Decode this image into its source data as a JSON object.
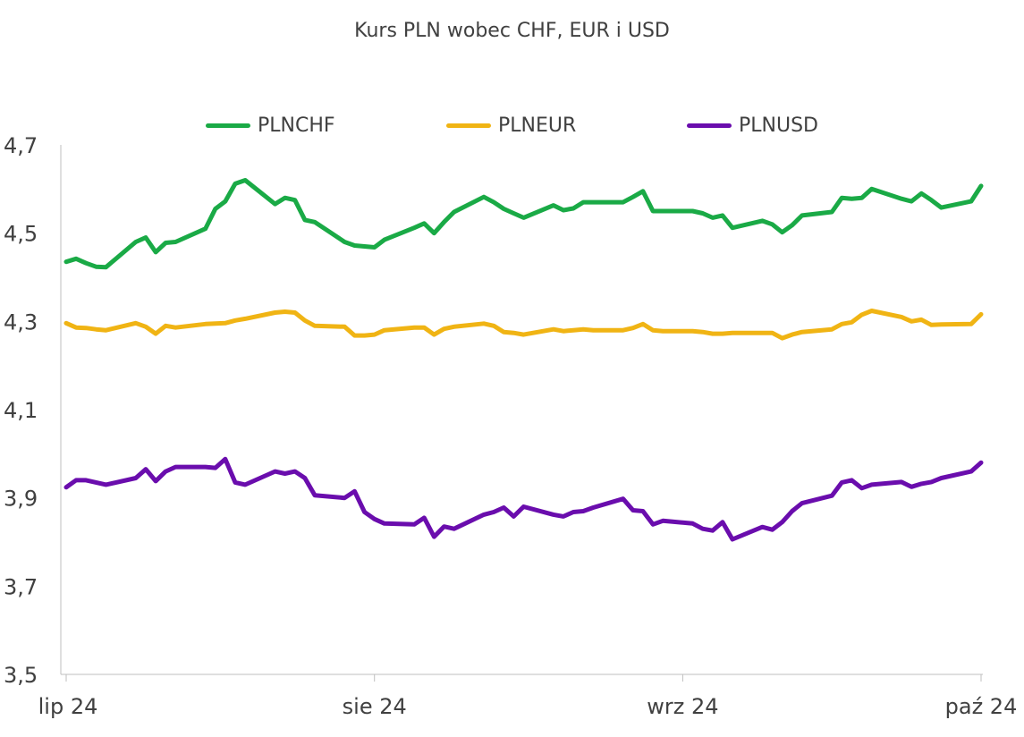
{
  "chart_data": {
    "type": "line",
    "title": "Kurs PLN wobec CHF, EUR i USD",
    "xlabel": "",
    "ylabel": "",
    "ylim": [
      3.5,
      4.7
    ],
    "y_ticks": [
      "3,5",
      "3,7",
      "3,9",
      "4,1",
      "4,3",
      "4,5",
      "4,7"
    ],
    "y_tick_values": [
      3.5,
      3.7,
      3.9,
      4.1,
      4.3,
      4.5,
      4.7
    ],
    "x_ticks": [
      "lip 24",
      "sie 24",
      "wrz 24",
      "paź 24"
    ],
    "x_tick_dates": [
      "2024-07-01",
      "2024-08-01",
      "2024-09-01",
      "2024-10-01"
    ],
    "legend_position": "top",
    "grid": false,
    "x": [
      "2024-07-01",
      "2024-07-02",
      "2024-07-03",
      "2024-07-04",
      "2024-07-05",
      "2024-07-08",
      "2024-07-09",
      "2024-07-10",
      "2024-07-11",
      "2024-07-12",
      "2024-07-15",
      "2024-07-16",
      "2024-07-17",
      "2024-07-18",
      "2024-07-19",
      "2024-07-22",
      "2024-07-23",
      "2024-07-24",
      "2024-07-25",
      "2024-07-26",
      "2024-07-29",
      "2024-07-30",
      "2024-07-31",
      "2024-08-01",
      "2024-08-02",
      "2024-08-05",
      "2024-08-06",
      "2024-08-07",
      "2024-08-08",
      "2024-08-09",
      "2024-08-12",
      "2024-08-13",
      "2024-08-14",
      "2024-08-15",
      "2024-08-16",
      "2024-08-19",
      "2024-08-20",
      "2024-08-21",
      "2024-08-22",
      "2024-08-23",
      "2024-08-26",
      "2024-08-27",
      "2024-08-28",
      "2024-08-29",
      "2024-08-30",
      "2024-09-02",
      "2024-09-03",
      "2024-09-04",
      "2024-09-05",
      "2024-09-06",
      "2024-09-09",
      "2024-09-10",
      "2024-09-11",
      "2024-09-12",
      "2024-09-13",
      "2024-09-16",
      "2024-09-17",
      "2024-09-18",
      "2024-09-19",
      "2024-09-20",
      "2024-09-23",
      "2024-09-24",
      "2024-09-25",
      "2024-09-26",
      "2024-09-27",
      "2024-09-30",
      "2024-10-01"
    ],
    "series": [
      {
        "name": "PLNCHF",
        "color": "#1aaa46",
        "values": [
          4.435,
          4.442,
          4.432,
          4.424,
          4.423,
          4.48,
          4.49,
          4.457,
          4.478,
          4.48,
          4.51,
          4.555,
          4.572,
          4.612,
          4.62,
          4.566,
          4.58,
          4.575,
          4.53,
          4.525,
          4.48,
          4.472,
          4.47,
          4.468,
          4.485,
          4.512,
          4.522,
          4.5,
          4.525,
          4.548,
          4.582,
          4.57,
          4.555,
          4.545,
          4.535,
          4.563,
          4.552,
          4.556,
          4.57,
          4.57,
          4.57,
          4.582,
          4.595,
          4.55,
          4.55,
          4.55,
          4.545,
          4.535,
          4.54,
          4.512,
          4.528,
          4.52,
          4.502,
          4.518,
          4.54,
          4.548,
          4.58,
          4.578,
          4.58,
          4.6,
          4.578,
          4.572,
          4.59,
          4.575,
          4.558,
          4.572,
          4.607
        ]
      },
      {
        "name": "PLNEUR",
        "color": "#f0b414",
        "values": [
          4.296,
          4.286,
          4.285,
          4.282,
          4.28,
          4.296,
          4.288,
          4.272,
          4.29,
          4.286,
          4.294,
          4.295,
          4.296,
          4.302,
          4.306,
          4.32,
          4.322,
          4.32,
          4.302,
          4.29,
          4.288,
          4.268,
          4.268,
          4.27,
          4.28,
          4.286,
          4.286,
          4.27,
          4.283,
          4.288,
          4.295,
          4.29,
          4.276,
          4.274,
          4.27,
          4.282,
          4.278,
          4.28,
          4.282,
          4.28,
          4.28,
          4.285,
          4.294,
          4.28,
          4.278,
          4.278,
          4.276,
          4.272,
          4.272,
          4.274,
          4.274,
          4.274,
          4.262,
          4.27,
          4.276,
          4.282,
          4.294,
          4.298,
          4.315,
          4.324,
          4.31,
          4.3,
          4.304,
          4.292,
          4.293,
          4.294,
          4.316
        ]
      },
      {
        "name": "PLNUSD",
        "color": "#6a0dad",
        "values": [
          3.924,
          3.94,
          3.94,
          3.935,
          3.93,
          3.945,
          3.965,
          3.938,
          3.96,
          3.97,
          3.97,
          3.968,
          3.988,
          3.935,
          3.93,
          3.96,
          3.955,
          3.96,
          3.945,
          3.906,
          3.9,
          3.915,
          3.868,
          3.852,
          3.842,
          3.84,
          3.855,
          3.812,
          3.835,
          3.83,
          3.862,
          3.868,
          3.878,
          3.858,
          3.88,
          3.862,
          3.858,
          3.868,
          3.87,
          3.878,
          3.898,
          3.872,
          3.87,
          3.84,
          3.848,
          3.842,
          3.83,
          3.826,
          3.845,
          3.806,
          3.834,
          3.828,
          3.845,
          3.87,
          3.888,
          3.905,
          3.935,
          3.94,
          3.922,
          3.93,
          3.936,
          3.925,
          3.932,
          3.936,
          3.945,
          3.96,
          3.98
        ]
      }
    ]
  }
}
